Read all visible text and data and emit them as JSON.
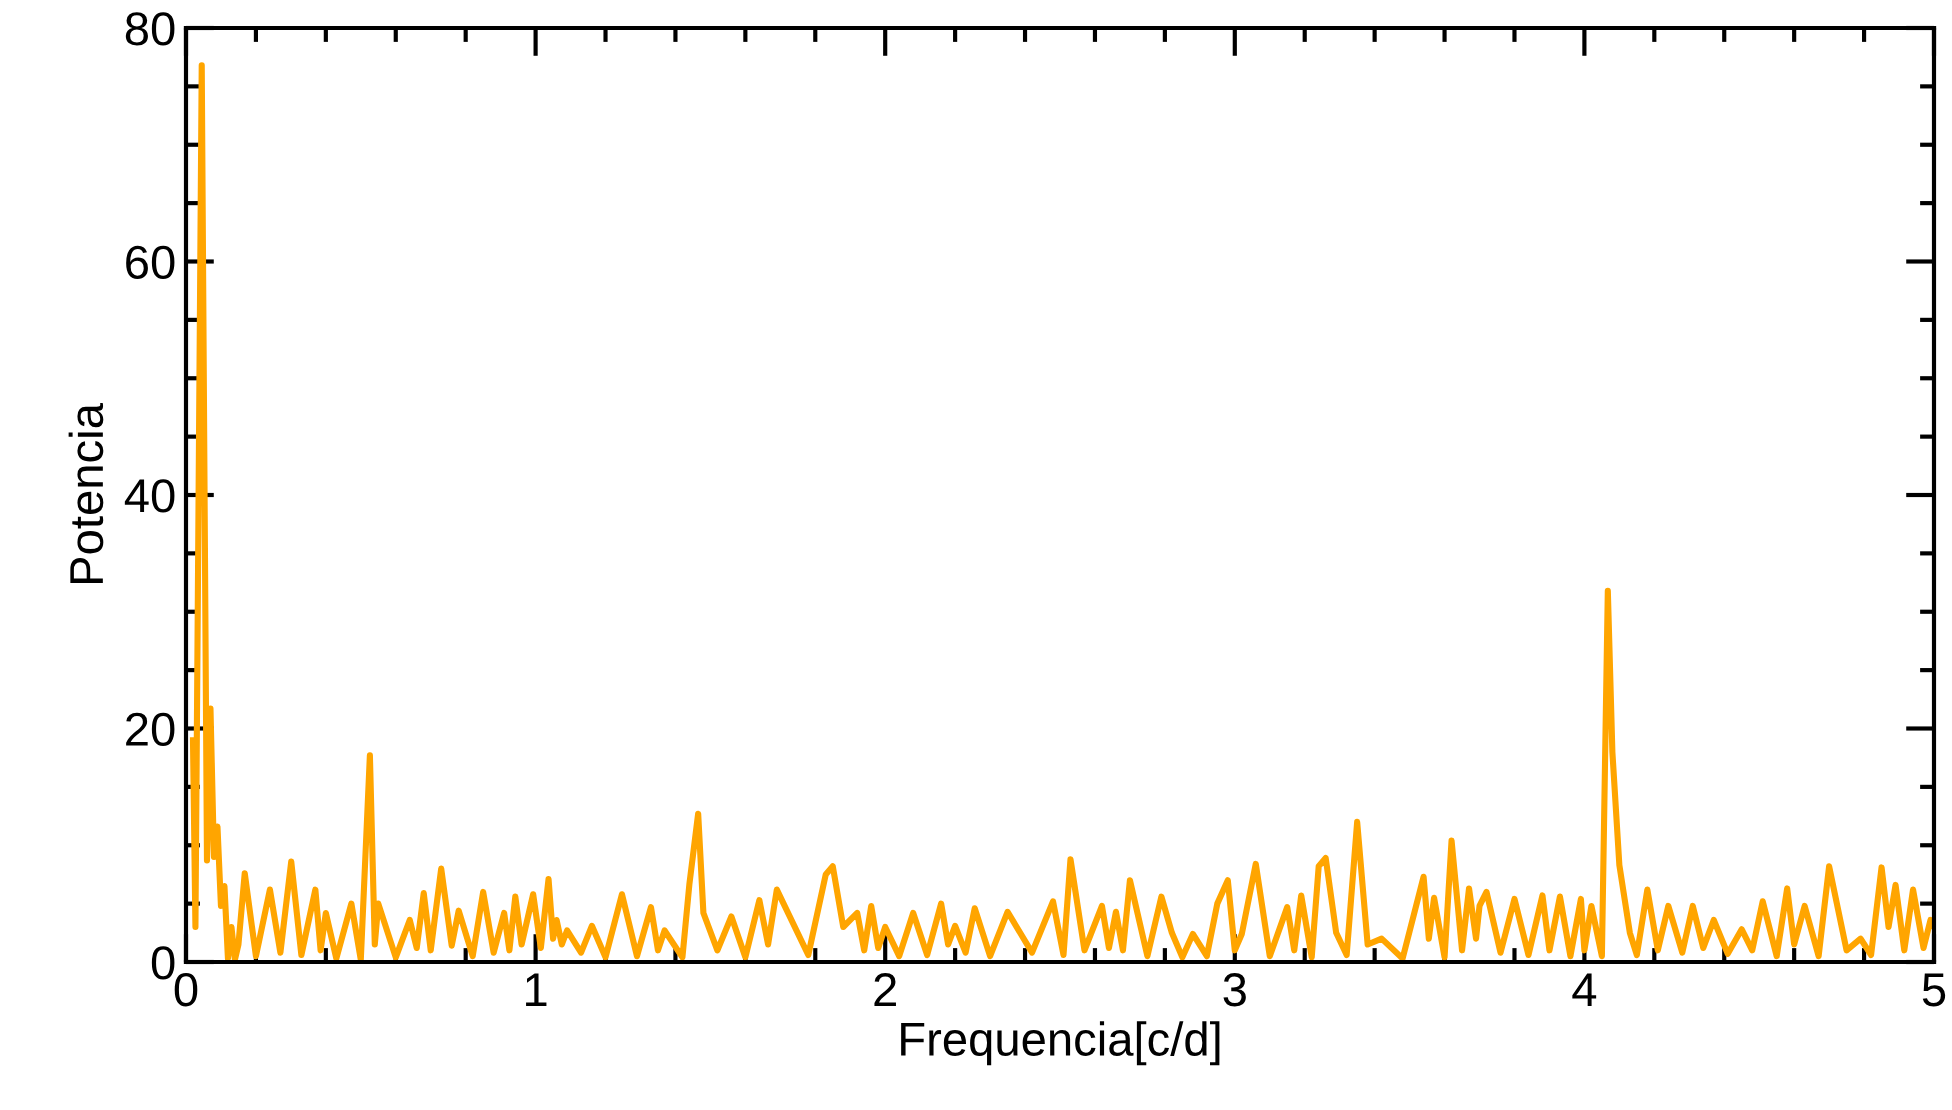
{
  "chart_data": {
    "type": "line",
    "xlabel": "Frequencia[c/d]",
    "ylabel": "Potencia",
    "xlim": [
      0,
      5
    ],
    "ylim": [
      0,
      80
    ],
    "xticks": [
      0,
      1,
      2,
      3,
      4,
      5
    ],
    "yticks": [
      0,
      20,
      40,
      60,
      80
    ],
    "grid": false,
    "marker": "none",
    "line_style": "solid",
    "series": [
      {
        "color": "#ffa500",
        "x": [
          0.02,
          0.027,
          0.045,
          0.06,
          0.07,
          0.08,
          0.09,
          0.1,
          0.11,
          0.12,
          0.13,
          0.14,
          0.15,
          0.168,
          0.2,
          0.24,
          0.27,
          0.301,
          0.33,
          0.37,
          0.385,
          0.4,
          0.43,
          0.473,
          0.5,
          0.526,
          0.54,
          0.55,
          0.6,
          0.64,
          0.66,
          0.68,
          0.7,
          0.73,
          0.76,
          0.78,
          0.82,
          0.85,
          0.88,
          0.91,
          0.925,
          0.942,
          0.96,
          0.993,
          1.015,
          1.037,
          1.05,
          1.06,
          1.075,
          1.09,
          1.13,
          1.161,
          1.2,
          1.247,
          1.29,
          1.33,
          1.35,
          1.369,
          1.42,
          1.44,
          1.465,
          1.48,
          1.52,
          1.56,
          1.6,
          1.64,
          1.665,
          1.69,
          1.78,
          1.83,
          1.85,
          1.88,
          1.92,
          1.94,
          1.96,
          1.98,
          2.0,
          2.04,
          2.08,
          2.12,
          2.16,
          2.18,
          2.2,
          2.23,
          2.256,
          2.3,
          2.35,
          2.42,
          2.48,
          2.51,
          2.53,
          2.57,
          2.62,
          2.64,
          2.66,
          2.68,
          2.7,
          2.75,
          2.79,
          2.82,
          2.85,
          2.88,
          2.92,
          2.95,
          2.98,
          3.0,
          3.02,
          3.06,
          3.1,
          3.15,
          3.17,
          3.19,
          3.22,
          3.24,
          3.26,
          3.29,
          3.32,
          3.35,
          3.38,
          3.42,
          3.48,
          3.54,
          3.555,
          3.57,
          3.6,
          3.62,
          3.65,
          3.67,
          3.69,
          3.7,
          3.72,
          3.76,
          3.8,
          3.84,
          3.88,
          3.9,
          3.93,
          3.96,
          3.99,
          4.0,
          4.02,
          4.05,
          4.067,
          4.08,
          4.1,
          4.13,
          4.15,
          4.18,
          4.21,
          4.24,
          4.28,
          4.31,
          4.34,
          4.37,
          4.41,
          4.45,
          4.48,
          4.51,
          4.55,
          4.58,
          4.6,
          4.63,
          4.67,
          4.7,
          4.75,
          4.79,
          4.82,
          4.85,
          4.87,
          4.89,
          4.915,
          4.94,
          4.97,
          4.99,
          5.0
        ],
        "values": [
          19,
          3,
          76.8,
          8.7,
          21.7,
          9,
          11.6,
          4.8,
          6.5,
          0.3,
          3,
          0.2,
          1.5,
          7.6,
          0.5,
          6.2,
          0.8,
          8.6,
          0.6,
          6.2,
          1,
          4.2,
          0.3,
          5,
          0.2,
          17.7,
          1.5,
          5,
          0.4,
          3.6,
          1.2,
          5.9,
          1,
          8,
          1.4,
          4.4,
          0.5,
          6,
          0.8,
          4.2,
          1,
          5.6,
          1.5,
          5.8,
          1.2,
          7.1,
          2,
          3.6,
          1.5,
          2.7,
          0.8,
          3.1,
          0.4,
          5.8,
          0.5,
          4.7,
          1,
          2.7,
          0.4,
          6.7,
          12.7,
          4.2,
          1,
          3.9,
          0.4,
          5.3,
          1.5,
          6.2,
          0.6,
          7.5,
          8.2,
          3,
          4.2,
          1,
          4.8,
          1.2,
          3,
          0.5,
          4.2,
          0.6,
          5,
          1.5,
          3.1,
          0.8,
          4.6,
          0.5,
          4.3,
          0.8,
          5.2,
          0.6,
          8.8,
          1,
          4.8,
          1.2,
          4.3,
          1,
          7,
          0.5,
          5.6,
          2.5,
          0.4,
          2.4,
          0.5,
          5,
          7,
          1,
          2.4,
          8.4,
          0.5,
          4.7,
          1,
          5.7,
          0.4,
          8.2,
          8.9,
          2.5,
          0.6,
          12,
          1.5,
          2,
          0.3,
          7.3,
          2,
          5.5,
          0.4,
          10.4,
          1,
          6.3,
          2,
          4.8,
          6,
          0.8,
          5.4,
          0.6,
          5.7,
          1,
          5.6,
          0.5,
          5.4,
          1,
          4.8,
          0.5,
          31.8,
          18,
          8.3,
          2.5,
          0.6,
          6.2,
          1,
          4.8,
          0.8,
          4.8,
          1.2,
          3.6,
          0.7,
          2.8,
          1,
          5.2,
          0.5,
          6.3,
          1.5,
          4.8,
          0.5,
          8.2,
          1,
          2,
          0.6,
          8.1,
          3,
          6.6,
          1,
          6.2,
          1.2,
          3.6,
          3
        ]
      }
    ]
  }
}
